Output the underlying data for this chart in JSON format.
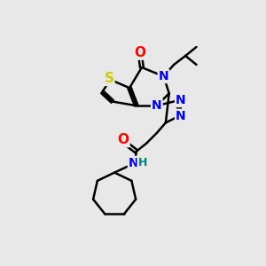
{
  "bg_color": "#e8e8e8",
  "atom_colors": {
    "S": "#cccc00",
    "N": "#0000ff",
    "O": "#ff0000",
    "H": "#008080",
    "C": "#000000"
  },
  "figsize": [
    3.0,
    3.0
  ],
  "dpi": 100
}
